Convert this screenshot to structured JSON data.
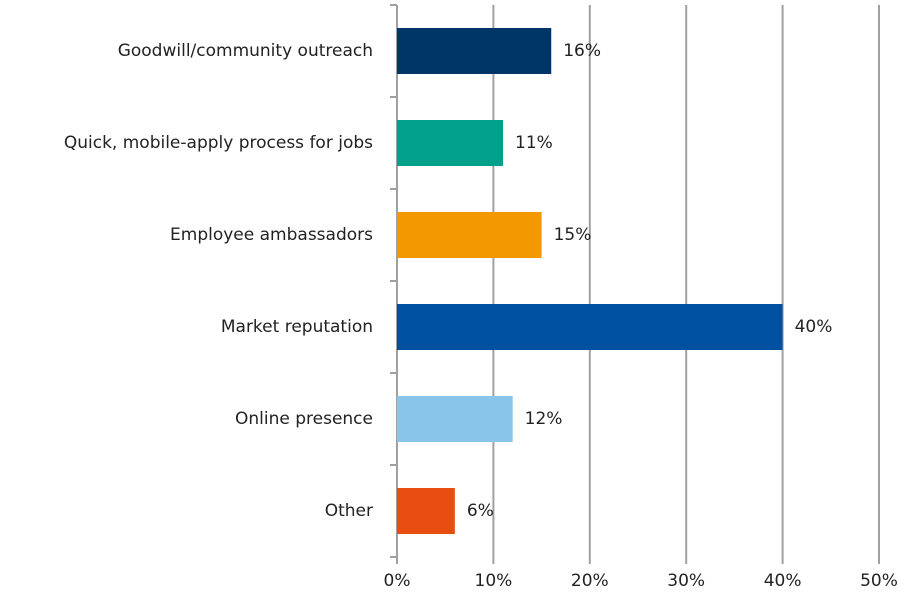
{
  "chart_data": {
    "type": "bar",
    "orientation": "horizontal",
    "categories": [
      "Goodwill/community outreach",
      "Quick, mobile-apply process for jobs",
      "Employee ambassadors",
      "Market reputation",
      "Online presence",
      "Other"
    ],
    "values": [
      16,
      11,
      15,
      40,
      12,
      6
    ],
    "value_labels": [
      "16%",
      "11%",
      "15%",
      "40%",
      "12%",
      "6%"
    ],
    "colors": [
      "#003567",
      "#00a08b",
      "#f39800",
      "#0050a1",
      "#89c4ea",
      "#e84e0f"
    ],
    "xlim": [
      0,
      50
    ],
    "xticks": [
      {
        "value": 0,
        "label": "0%"
      },
      {
        "value": 10,
        "label": "10%"
      },
      {
        "value": 20,
        "label": "20%"
      },
      {
        "value": 30,
        "label": "30%"
      },
      {
        "value": 40,
        "label": "40%"
      },
      {
        "value": 50,
        "label": "50%"
      }
    ],
    "grid": true
  }
}
